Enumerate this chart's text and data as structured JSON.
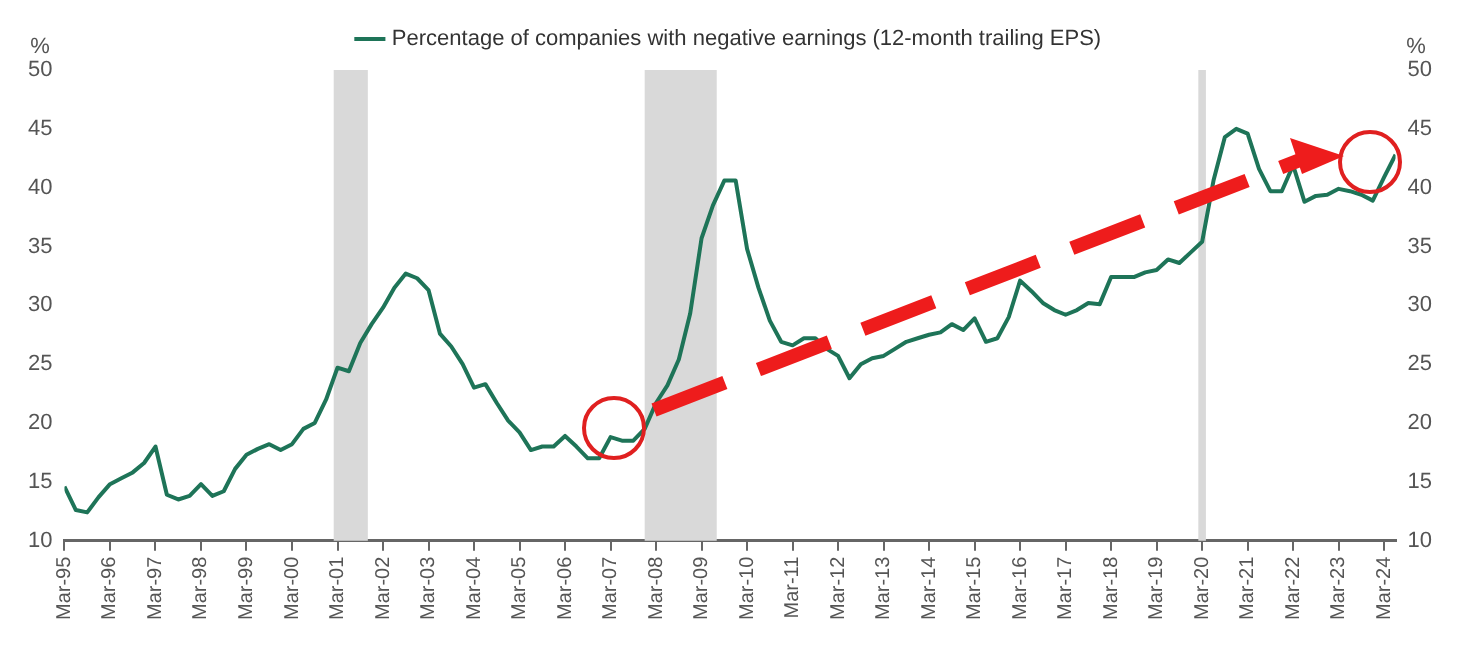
{
  "chart_data": {
    "type": "line",
    "ylabel": "%",
    "y2label": "%",
    "legend": "top",
    "marker": "none",
    "line_style": "solid",
    "grid": false,
    "x": [
      "1995-03",
      "1995-06",
      "1995-09",
      "1995-12",
      "1996-03",
      "1996-06",
      "1996-09",
      "1996-12",
      "1997-03",
      "1997-06",
      "1997-09",
      "1997-12",
      "1998-03",
      "1998-06",
      "1998-09",
      "1998-12",
      "1999-03",
      "1999-06",
      "1999-09",
      "1999-12",
      "2000-03",
      "2000-06",
      "2000-09",
      "2000-12",
      "2001-03",
      "2001-06",
      "2001-09",
      "2001-12",
      "2002-03",
      "2002-06",
      "2002-09",
      "2002-12",
      "2003-03",
      "2003-06",
      "2003-09",
      "2003-12",
      "2004-03",
      "2004-06",
      "2004-09",
      "2004-12",
      "2005-03",
      "2005-06",
      "2005-09",
      "2005-12",
      "2006-03",
      "2006-06",
      "2006-09",
      "2006-12",
      "2007-03",
      "2007-06",
      "2007-09",
      "2007-12",
      "2008-03",
      "2008-06",
      "2008-09",
      "2008-12",
      "2009-03",
      "2009-06",
      "2009-09",
      "2009-12",
      "2010-03",
      "2010-06",
      "2010-09",
      "2010-12",
      "2011-03",
      "2011-06",
      "2011-09",
      "2011-12",
      "2012-03",
      "2012-06",
      "2012-09",
      "2012-12",
      "2013-03",
      "2013-06",
      "2013-09",
      "2013-12",
      "2014-03",
      "2014-06",
      "2014-09",
      "2014-12",
      "2015-03",
      "2015-06",
      "2015-09",
      "2015-12",
      "2016-03",
      "2016-06",
      "2016-09",
      "2016-12",
      "2017-03",
      "2017-06",
      "2017-09",
      "2017-12",
      "2018-03",
      "2018-06",
      "2018-09",
      "2018-12",
      "2019-03",
      "2019-06",
      "2019-09",
      "2019-12",
      "2020-03",
      "2020-06",
      "2020-09",
      "2020-12",
      "2021-03",
      "2021-06",
      "2021-09",
      "2021-12",
      "2022-03",
      "2022-06",
      "2022-09",
      "2022-12",
      "2023-03",
      "2023-06",
      "2023-09",
      "2023-12",
      "2024-03",
      "2024-06"
    ],
    "series": [
      {
        "name": "Percentage of companies with negative earnings (12-month trailing EPS)",
        "color": "#1e7458",
        "values": [
          14.6,
          12.6,
          12.4,
          13.7,
          14.8,
          15.3,
          15.8,
          16.6,
          18.0,
          13.9,
          13.5,
          13.8,
          14.8,
          13.8,
          14.2,
          16.1,
          17.3,
          17.8,
          18.2,
          17.7,
          18.2,
          19.5,
          20.0,
          22.0,
          24.7,
          24.4,
          26.8,
          28.4,
          29.8,
          31.5,
          32.7,
          32.3,
          31.3,
          27.6,
          26.5,
          25.0,
          23.0,
          23.3,
          21.7,
          20.2,
          19.2,
          17.7,
          18.0,
          18.0,
          18.9,
          18.0,
          17.0,
          17.0,
          18.8,
          18.5,
          18.5,
          19.5,
          21.7,
          23.2,
          25.4,
          29.3,
          35.7,
          38.5,
          40.6,
          40.6,
          34.8,
          31.5,
          28.7,
          26.9,
          26.6,
          27.2,
          27.2,
          26.3,
          25.7,
          23.8,
          25.0,
          25.5,
          25.7,
          26.3,
          26.9,
          27.2,
          27.5,
          27.7,
          28.4,
          27.9,
          28.9,
          26.9,
          27.2,
          29.0,
          32.1,
          31.2,
          30.2,
          29.6,
          29.2,
          29.6,
          30.2,
          30.1,
          32.4,
          32.4,
          32.4,
          32.8,
          33.0,
          33.9,
          33.6,
          34.5,
          35.4,
          40.6,
          44.3,
          45.0,
          44.6,
          41.6,
          39.7,
          39.7,
          41.9,
          38.8,
          39.3,
          39.4,
          39.9,
          39.7,
          39.4,
          38.9,
          40.9,
          42.8
        ]
      }
    ],
    "xlim": [
      "1995-03",
      "2024-06"
    ],
    "xticks": [
      {
        "value": "1995-03",
        "label": "Mar-95"
      },
      {
        "value": "1996-03",
        "label": "Mar-96"
      },
      {
        "value": "1997-03",
        "label": "Mar-97"
      },
      {
        "value": "1998-03",
        "label": "Mar-98"
      },
      {
        "value": "1999-03",
        "label": "Mar-99"
      },
      {
        "value": "2000-03",
        "label": "Mar-00"
      },
      {
        "value": "2001-03",
        "label": "Mar-01"
      },
      {
        "value": "2002-03",
        "label": "Mar-02"
      },
      {
        "value": "2003-03",
        "label": "Mar-03"
      },
      {
        "value": "2004-03",
        "label": "Mar-04"
      },
      {
        "value": "2005-03",
        "label": "Mar-05"
      },
      {
        "value": "2006-03",
        "label": "Mar-06"
      },
      {
        "value": "2007-03",
        "label": "Mar-07"
      },
      {
        "value": "2008-03",
        "label": "Mar-08"
      },
      {
        "value": "2009-03",
        "label": "Mar-09"
      },
      {
        "value": "2010-03",
        "label": "Mar-10"
      },
      {
        "value": "2011-03",
        "label": "Mar-11"
      },
      {
        "value": "2012-03",
        "label": "Mar-12"
      },
      {
        "value": "2013-03",
        "label": "Mar-13"
      },
      {
        "value": "2014-03",
        "label": "Mar-14"
      },
      {
        "value": "2015-03",
        "label": "Mar-15"
      },
      {
        "value": "2016-03",
        "label": "Mar-16"
      },
      {
        "value": "2017-03",
        "label": "Mar-17"
      },
      {
        "value": "2018-03",
        "label": "Mar-18"
      },
      {
        "value": "2019-03",
        "label": "Mar-19"
      },
      {
        "value": "2020-03",
        "label": "Mar-20"
      },
      {
        "value": "2021-03",
        "label": "Mar-21"
      },
      {
        "value": "2022-03",
        "label": "Mar-22"
      },
      {
        "value": "2023-03",
        "label": "Mar-23"
      },
      {
        "value": "2024-03",
        "label": "Mar-24"
      }
    ],
    "ylim": [
      10,
      50
    ],
    "yticks": [
      10,
      15,
      20,
      25,
      30,
      35,
      40,
      45,
      50
    ],
    "y2lim": [
      10,
      50
    ],
    "y2ticks": [
      10,
      15,
      20,
      25,
      30,
      35,
      40,
      45,
      50
    ],
    "bands": [
      {
        "axis": "x",
        "from": "2001-02",
        "to": "2001-11",
        "color": "#d9d9d9"
      },
      {
        "axis": "x",
        "from": "2007-12",
        "to": "2009-07",
        "color": "#d9d9d9"
      },
      {
        "axis": "x",
        "from": "2020-02",
        "to": "2020-04",
        "color": "#d9d9d9"
      }
    ]
  }
}
